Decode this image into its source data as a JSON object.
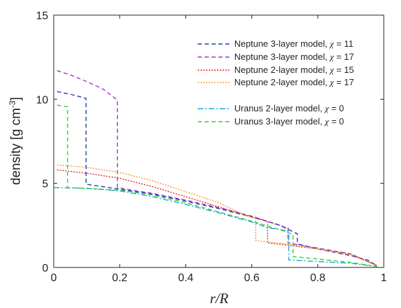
{
  "chart_data": {
    "type": "line",
    "xlabel_main": "r/R",
    "ylabel_main": "density [g cm",
    "ylabel_sup": "-3",
    "ylabel_close": "]",
    "xlim": [
      0,
      1
    ],
    "ylim": [
      0,
      15
    ],
    "xticks": [
      0,
      0.2,
      0.4,
      0.6,
      0.8,
      1
    ],
    "xtick_labels": [
      "0",
      "0.2",
      "0.4",
      "0.6",
      "0.8",
      "1"
    ],
    "yticks": [
      0,
      5,
      10,
      15
    ],
    "ytick_labels": [
      "0",
      "5",
      "10",
      "15"
    ],
    "grid": false,
    "legend_position": "top-right",
    "series": [
      {
        "label_prefix": "Neptune 3-layer model, ",
        "chi": "χ",
        "label_suffix": " = 11",
        "color": "#1f3fa6",
        "dash": "6,4",
        "points": [
          [
            0.01,
            10.45
          ],
          [
            0.05,
            10.3
          ],
          [
            0.098,
            10.05
          ],
          [
            0.098,
            4.95
          ],
          [
            0.15,
            4.8
          ],
          [
            0.2,
            4.65
          ],
          [
            0.3,
            4.35
          ],
          [
            0.4,
            3.95
          ],
          [
            0.5,
            3.5
          ],
          [
            0.6,
            3.0
          ],
          [
            0.68,
            2.55
          ],
          [
            0.738,
            2.0
          ],
          [
            0.738,
            1.4
          ],
          [
            0.8,
            1.1
          ],
          [
            0.9,
            0.7
          ],
          [
            0.95,
            0.45
          ],
          [
            0.98,
            0.1
          ]
        ]
      },
      {
        "label_prefix": "Neptune 3-layer model, ",
        "chi": "χ",
        "label_suffix": " = 17",
        "color": "#9b30d9",
        "dash": "6,4",
        "points": [
          [
            0.01,
            11.7
          ],
          [
            0.05,
            11.45
          ],
          [
            0.1,
            11.05
          ],
          [
            0.15,
            10.6
          ],
          [
            0.193,
            9.95
          ],
          [
            0.193,
            4.75
          ],
          [
            0.25,
            4.55
          ],
          [
            0.3,
            4.4
          ],
          [
            0.4,
            4.0
          ],
          [
            0.5,
            3.55
          ],
          [
            0.6,
            3.05
          ],
          [
            0.7,
            2.4
          ],
          [
            0.71,
            2.35
          ],
          [
            0.71,
            1.45
          ],
          [
            0.8,
            1.15
          ],
          [
            0.9,
            0.8
          ],
          [
            0.98,
            0.1
          ]
        ]
      },
      {
        "label_prefix": "Neptune 2-layer model, ",
        "chi": "χ",
        "label_suffix": " = 15",
        "color": "#e02020",
        "dash": "2,2",
        "points": [
          [
            0.01,
            5.8
          ],
          [
            0.1,
            5.6
          ],
          [
            0.2,
            5.3
          ],
          [
            0.3,
            4.8
          ],
          [
            0.4,
            4.2
          ],
          [
            0.5,
            3.6
          ],
          [
            0.6,
            3.0
          ],
          [
            0.648,
            2.75
          ],
          [
            0.648,
            1.45
          ],
          [
            0.7,
            1.35
          ],
          [
            0.8,
            1.1
          ],
          [
            0.9,
            0.8
          ],
          [
            0.98,
            0.1
          ]
        ]
      },
      {
        "label_prefix": "Neptune 2-layer model, ",
        "chi": "χ",
        "label_suffix": " = 17",
        "color": "#f59a30",
        "dash": "2,2",
        "points": [
          [
            0.01,
            6.1
          ],
          [
            0.1,
            5.95
          ],
          [
            0.2,
            5.65
          ],
          [
            0.3,
            5.15
          ],
          [
            0.4,
            4.5
          ],
          [
            0.5,
            3.85
          ],
          [
            0.58,
            3.1
          ],
          [
            0.612,
            2.9
          ],
          [
            0.612,
            1.6
          ],
          [
            0.7,
            1.4
          ],
          [
            0.8,
            1.1
          ],
          [
            0.9,
            0.75
          ],
          [
            0.98,
            0.1
          ]
        ]
      },
      {
        "label_prefix": "Uranus 2-layer model, ",
        "chi": "χ",
        "label_suffix": " = 0",
        "color": "#18a8d8",
        "dash": "8,3,2,3",
        "points": [
          [
            0.0,
            4.75
          ],
          [
            0.1,
            4.7
          ],
          [
            0.2,
            4.55
          ],
          [
            0.3,
            4.2
          ],
          [
            0.4,
            3.75
          ],
          [
            0.5,
            3.25
          ],
          [
            0.6,
            2.7
          ],
          [
            0.65,
            2.35
          ],
          [
            0.7,
            2.2
          ],
          [
            0.712,
            2.05
          ],
          [
            0.712,
            0.45
          ],
          [
            0.8,
            0.35
          ],
          [
            0.9,
            0.25
          ],
          [
            0.98,
            0.05
          ]
        ]
      },
      {
        "label_prefix": "Uranus 3-layer model, ",
        "chi": "χ",
        "label_suffix": " = 0",
        "color": "#2fd02f",
        "dash": "6,4",
        "points": [
          [
            0.01,
            9.65
          ],
          [
            0.042,
            9.55
          ],
          [
            0.042,
            4.75
          ],
          [
            0.1,
            4.7
          ],
          [
            0.2,
            4.6
          ],
          [
            0.3,
            4.3
          ],
          [
            0.4,
            3.85
          ],
          [
            0.5,
            3.3
          ],
          [
            0.6,
            2.75
          ],
          [
            0.7,
            2.15
          ],
          [
            0.725,
            1.95
          ],
          [
            0.725,
            0.65
          ],
          [
            0.8,
            0.5
          ],
          [
            0.9,
            0.3
          ],
          [
            0.98,
            0.05
          ]
        ]
      }
    ]
  }
}
